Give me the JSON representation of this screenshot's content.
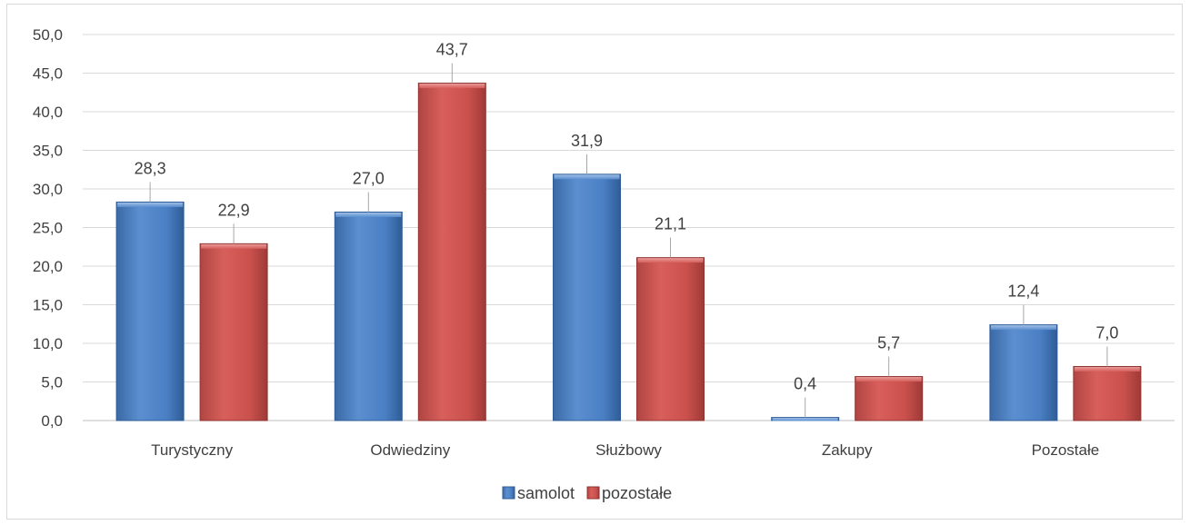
{
  "chart_data": {
    "type": "bar",
    "categories": [
      "Turystyczny",
      "Odwiedziny",
      "Służbowy",
      "Zakupy",
      "Pozostałe"
    ],
    "series": [
      {
        "name": "samolot",
        "values": [
          28.3,
          27.0,
          31.9,
          0.4,
          12.4
        ],
        "labels": [
          "28,3",
          "27,0",
          "31,9",
          "0,4",
          "12,4"
        ],
        "color": "#4f81bd"
      },
      {
        "name": "pozostałe",
        "values": [
          22.9,
          43.7,
          21.1,
          5.7,
          7.0
        ],
        "labels": [
          "22,9",
          "43,7",
          "21,1",
          "5,7",
          "7,0"
        ],
        "color": "#c0504d"
      }
    ],
    "ylim": [
      0,
      50
    ],
    "yticks": [
      "0,0",
      "5,0",
      "10,0",
      "15,0",
      "20,0",
      "25,0",
      "30,0",
      "35,0",
      "40,0",
      "45,0",
      "50,0"
    ],
    "ytick_step": 5,
    "grid": true,
    "legend_position": "bottom",
    "title": "",
    "xlabel": "",
    "ylabel": ""
  }
}
